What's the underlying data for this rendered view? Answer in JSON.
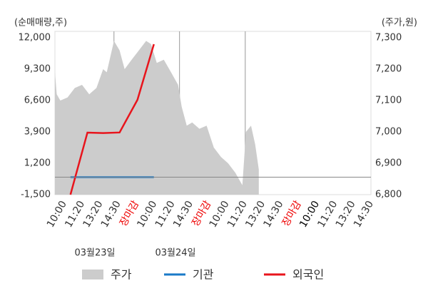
{
  "chart_data": {
    "type": "line",
    "y_axis_label": "(순매매량,주)",
    "y2_axis_label": "(주가,원)",
    "categories": [
      "10:00",
      "11:20",
      "13:20",
      "14:30",
      "장마감",
      "10:00",
      "11:20",
      "14:30",
      "장마감",
      "10:00",
      "11:20",
      "13:20",
      "14:30",
      "장마감",
      "10:00",
      "11:20",
      "13:20",
      "14:30"
    ],
    "category_colors": [
      "#333",
      "#333",
      "#333",
      "#333",
      "#e00",
      "#333",
      "#333",
      "#333",
      "#e00",
      "#333",
      "#333",
      "#333",
      "#333",
      "#e00",
      "#000",
      "#333",
      "#333",
      "#333"
    ],
    "dates": [
      "03월23일",
      "03월24일"
    ],
    "xlim": [
      -0.5,
      17
    ],
    "ylim": [
      -1500,
      12000
    ],
    "yticks": [
      {
        "value": -1500,
        "label": "-1,500"
      },
      {
        "value": 1200,
        "label": "1,200"
      },
      {
        "value": 3900,
        "label": "3,900"
      },
      {
        "value": 6600,
        "label": "6,600"
      },
      {
        "value": 9300,
        "label": "9,300"
      },
      {
        "value": 12000,
        "label": "12,000"
      }
    ],
    "y2lim": [
      6800,
      7300
    ],
    "y2ticks": [
      {
        "value": 6800,
        "label": "6,800"
      },
      {
        "value": 6900,
        "label": "6,900"
      },
      {
        "value": 7000,
        "label": "7,000"
      },
      {
        "value": 7100,
        "label": "7,100"
      },
      {
        "value": 7200,
        "label": "7,200"
      },
      {
        "value": 7300,
        "label": "7,300"
      }
    ],
    "series": [
      {
        "name": "주가",
        "color": "#cccccc",
        "axis": "y2",
        "kind": "area",
        "x": [
          -0.5,
          -0.4,
          -0.2,
          0.2,
          0.6,
          1.0,
          1.4,
          1.8,
          2.17,
          2.37,
          2.77,
          3.08,
          3.36,
          3.75,
          4.15,
          4.55,
          4.82,
          5.14,
          5.53,
          5.93,
          6.32,
          6.52,
          6.8,
          7.1,
          7.5,
          7.9,
          8.3,
          8.7,
          9.09,
          9.49,
          9.88,
          10.08,
          10.36,
          10.59,
          10.79
        ],
        "values": [
          7190,
          7120,
          7100,
          7110,
          7140,
          7150,
          7120,
          7140,
          7200,
          7190,
          7290,
          7260,
          7200,
          7230,
          7260,
          7290,
          7280,
          7220,
          7230,
          7190,
          7150,
          7080,
          7020,
          7030,
          7010,
          7020,
          6950,
          6920,
          6900,
          6870,
          6830,
          7000,
          7020,
          6960,
          6880
        ]
      },
      {
        "name": "기관",
        "color": "#1a7ac8",
        "kind": "line",
        "x": [
          0.36,
          4.98
        ],
        "values": [
          0,
          0
        ]
      },
      {
        "name": "외국인",
        "color": "#e8141c",
        "kind": "line",
        "x": [
          0.36,
          1.3,
          2.17,
          3.08,
          4.07,
          4.98
        ],
        "values": [
          -1500,
          3840,
          3800,
          3850,
          6660,
          11450
        ]
      }
    ]
  }
}
